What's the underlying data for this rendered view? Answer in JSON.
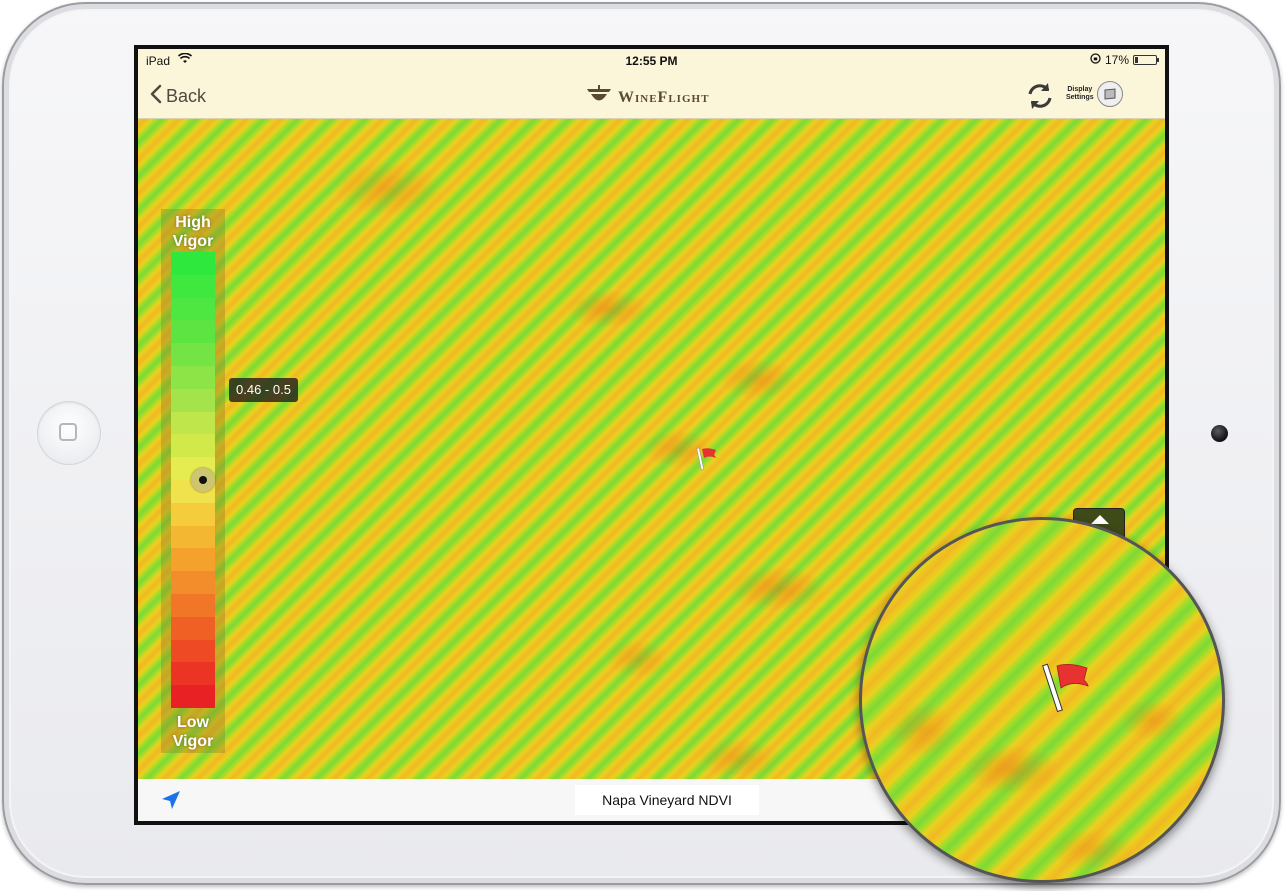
{
  "status_bar": {
    "carrier": "iPad",
    "time": "12:55 PM",
    "battery": "17%",
    "battery_level": 0.17
  },
  "nav": {
    "back_label": "Back",
    "app_name": "WineFlight",
    "display_settings_label_1": "Display",
    "display_settings_label_2": "Settings"
  },
  "legend": {
    "high_label_1": "High",
    "high_label_2": "Vigor",
    "low_label_1": "Low",
    "low_label_2": "Vigor",
    "selected_range": "0.46 - 0.5",
    "colors": [
      "#2ee83e",
      "#3ee83e",
      "#4ee640",
      "#5ee442",
      "#74e444",
      "#8ce446",
      "#a4e44a",
      "#bfe64a",
      "#d2e94a",
      "#e4ec50",
      "#f0e24c",
      "#f4cc3c",
      "#f3b732",
      "#f4a22c",
      "#f38c2a",
      "#f27627",
      "#f06024",
      "#ee4a24",
      "#ec3424",
      "#e82224"
    ]
  },
  "map": {
    "title": "Napa Vineyard NDVI",
    "flag_color": "#e8322f"
  }
}
